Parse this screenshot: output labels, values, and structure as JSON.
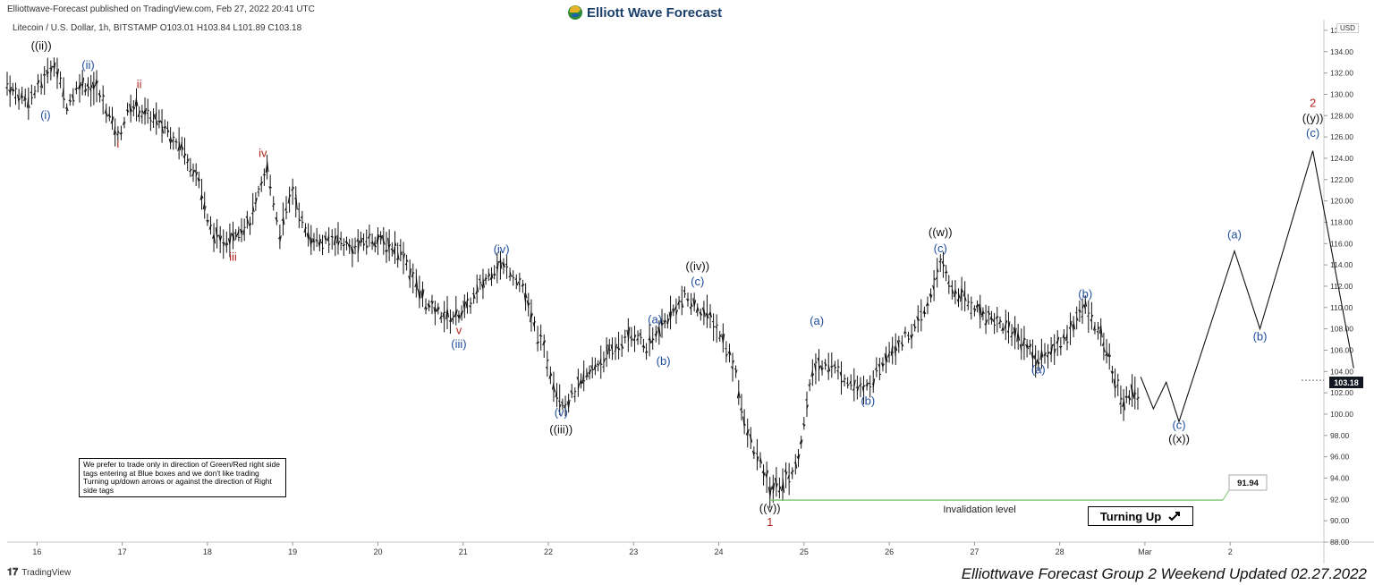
{
  "header": {
    "published": "Elliottwave-Forecast published on TradingView.com, Feb 27, 2022 20:41 UTC",
    "symbol_line": "Litecoin / U.S. Dollar, 1h, BITSTAMP  O103.01  H103.84  L101.89  C103.18",
    "brand": "Elliott Wave Forecast"
  },
  "footer": {
    "left": "TradingView",
    "right": "Elliottwave Forecast Group 2 Weekend Updated 02.27.2022"
  },
  "note": "We prefer to trade only in direction of Green/Red right side tags entering at Blue boxes and we don't like trading Turning up/down arrows or against the direction of Right side tags",
  "turning_up": "Turning Up",
  "turning_up_icon": "arrow-up-right-icon",
  "invalidation_label": "Invalidation level",
  "invalidation_value": "91.94",
  "current_price": "103.18",
  "currency": "USD",
  "colors": {
    "blue": "#1f4e9c",
    "red": "#b3261e",
    "black": "#111111",
    "green": "#7cc36b"
  },
  "chart_data": {
    "type": "line",
    "title": "Litecoin / U.S. Dollar, 1h, BITSTAMP",
    "x_ticks": [
      {
        "label": "16",
        "day": 16
      },
      {
        "label": "17",
        "day": 17
      },
      {
        "label": "18",
        "day": 18
      },
      {
        "label": "19",
        "day": 19
      },
      {
        "label": "20",
        "day": 20
      },
      {
        "label": "21",
        "day": 21
      },
      {
        "label": "22",
        "day": 22
      },
      {
        "label": "23",
        "day": 23
      },
      {
        "label": "24",
        "day": 24
      },
      {
        "label": "25",
        "day": 25
      },
      {
        "label": "26",
        "day": 26
      },
      {
        "label": "27",
        "day": 27
      },
      {
        "label": "28",
        "day": 28
      },
      {
        "label": "Mar",
        "day": 29
      },
      {
        "label": "2",
        "day": 30
      }
    ],
    "y_ticks": [
      88,
      90,
      92,
      94,
      96,
      98,
      100,
      102,
      104,
      106,
      108,
      110,
      112,
      114,
      116,
      118,
      120,
      122,
      124,
      126,
      128,
      130,
      132,
      134,
      136
    ],
    "ylim": [
      88,
      137
    ],
    "xlim": [
      15.65,
      31.1
    ],
    "price_path": [
      [
        15.65,
        131
      ],
      [
        15.75,
        130
      ],
      [
        15.9,
        129.5
      ],
      [
        16.05,
        131
      ],
      [
        16.2,
        133
      ],
      [
        16.35,
        129
      ],
      [
        16.5,
        131
      ],
      [
        16.7,
        130.5
      ],
      [
        16.85,
        128
      ],
      [
        16.95,
        126
      ],
      [
        17.1,
        129
      ],
      [
        17.3,
        128
      ],
      [
        17.5,
        127
      ],
      [
        17.7,
        125
      ],
      [
        17.9,
        122
      ],
      [
        18.0,
        118
      ],
      [
        18.15,
        116
      ],
      [
        18.3,
        117
      ],
      [
        18.5,
        118
      ],
      [
        18.7,
        123
      ],
      [
        18.85,
        117
      ],
      [
        19.0,
        121
      ],
      [
        19.15,
        117
      ],
      [
        19.35,
        116
      ],
      [
        19.5,
        116.5
      ],
      [
        19.7,
        115.5
      ],
      [
        19.9,
        116.5
      ],
      [
        20.1,
        116
      ],
      [
        20.3,
        115
      ],
      [
        20.45,
        112
      ],
      [
        20.6,
        110
      ],
      [
        20.85,
        109
      ],
      [
        21.05,
        110
      ],
      [
        21.2,
        112
      ],
      [
        21.4,
        114
      ],
      [
        21.55,
        113.5
      ],
      [
        21.7,
        112
      ],
      [
        21.8,
        109
      ],
      [
        21.95,
        106
      ],
      [
        22.1,
        102
      ],
      [
        22.2,
        101
      ],
      [
        22.35,
        102.5
      ],
      [
        22.55,
        104.5
      ],
      [
        22.75,
        106
      ],
      [
        22.9,
        107
      ],
      [
        23.05,
        107.5
      ],
      [
        23.15,
        106
      ],
      [
        23.3,
        108
      ],
      [
        23.5,
        110
      ],
      [
        23.6,
        111
      ],
      [
        23.75,
        110
      ],
      [
        23.9,
        109
      ],
      [
        24.05,
        107
      ],
      [
        24.2,
        104
      ],
      [
        24.3,
        99
      ],
      [
        24.45,
        96
      ],
      [
        24.6,
        93
      ],
      [
        24.75,
        93.5
      ],
      [
        24.9,
        95
      ],
      [
        25.0,
        99
      ],
      [
        25.1,
        104
      ],
      [
        25.25,
        105
      ],
      [
        25.4,
        104
      ],
      [
        25.55,
        103
      ],
      [
        25.7,
        102
      ],
      [
        25.85,
        104
      ],
      [
        26.0,
        106
      ],
      [
        26.15,
        107
      ],
      [
        26.3,
        108
      ],
      [
        26.45,
        110
      ],
      [
        26.6,
        114.5
      ],
      [
        26.7,
        112
      ],
      [
        26.85,
        111
      ],
      [
        27.0,
        110
      ],
      [
        27.2,
        109
      ],
      [
        27.4,
        108
      ],
      [
        27.55,
        107
      ],
      [
        27.75,
        105
      ],
      [
        27.9,
        106
      ],
      [
        28.05,
        107
      ],
      [
        28.2,
        109
      ],
      [
        28.3,
        110
      ],
      [
        28.45,
        108
      ],
      [
        28.55,
        106
      ],
      [
        28.65,
        103
      ],
      [
        28.75,
        101
      ],
      [
        28.85,
        102.5
      ],
      [
        28.95,
        100.5
      ]
    ],
    "projection": [
      [
        28.95,
        103.5
      ],
      [
        29.1,
        100.5
      ],
      [
        29.25,
        103
      ],
      [
        29.4,
        99.3
      ],
      [
        30.05,
        115.3
      ],
      [
        30.35,
        108
      ],
      [
        30.97,
        124.7
      ],
      [
        31.45,
        104.3
      ]
    ],
    "invalidation": {
      "from": 24.6,
      "to": 31.2,
      "value": 91.94
    },
    "labels": [
      {
        "text": "((ii))",
        "x": 16.05,
        "y": 134.2,
        "color": "black"
      },
      {
        "text": "(ii)",
        "x": 16.6,
        "y": 132.4,
        "color": "blue"
      },
      {
        "text": "(i)",
        "x": 16.1,
        "y": 127.7,
        "color": "blue"
      },
      {
        "text": "ii",
        "x": 17.2,
        "y": 130.6,
        "color": "red"
      },
      {
        "text": "i",
        "x": 16.95,
        "y": 125.0,
        "color": "red"
      },
      {
        "text": "iv",
        "x": 18.65,
        "y": 124.1,
        "color": "red"
      },
      {
        "text": "iii",
        "x": 18.3,
        "y": 114.4,
        "color": "red"
      },
      {
        "text": "(iv)",
        "x": 21.45,
        "y": 115.1,
        "color": "blue"
      },
      {
        "text": "v",
        "x": 20.95,
        "y": 107.5,
        "color": "red"
      },
      {
        "text": "(iii)",
        "x": 20.95,
        "y": 106.2,
        "color": "blue"
      },
      {
        "text": "((iv))",
        "x": 23.75,
        "y": 113.5,
        "color": "black"
      },
      {
        "text": "(c)",
        "x": 23.75,
        "y": 112.1,
        "color": "blue"
      },
      {
        "text": "(a)",
        "x": 23.25,
        "y": 108.5,
        "color": "blue"
      },
      {
        "text": "(b)",
        "x": 23.35,
        "y": 104.6,
        "color": "blue"
      },
      {
        "text": "(v)",
        "x": 22.15,
        "y": 99.8,
        "color": "blue"
      },
      {
        "text": "((iii))",
        "x": 22.15,
        "y": 98.2,
        "color": "black"
      },
      {
        "text": "(a)",
        "x": 25.15,
        "y": 108.4,
        "color": "blue"
      },
      {
        "text": "(b)",
        "x": 25.75,
        "y": 100.9,
        "color": "blue"
      },
      {
        "text": "((w))",
        "x": 26.6,
        "y": 116.7,
        "color": "black"
      },
      {
        "text": "(c)",
        "x": 26.6,
        "y": 115.2,
        "color": "blue"
      },
      {
        "text": "((v))",
        "x": 24.6,
        "y": 90.8,
        "color": "black"
      },
      {
        "text": "1",
        "x": 24.6,
        "y": 89.5,
        "color": "red"
      },
      {
        "text": "(b)",
        "x": 28.3,
        "y": 110.9,
        "color": "blue"
      },
      {
        "text": "(a)",
        "x": 27.75,
        "y": 103.8,
        "color": "blue"
      },
      {
        "text": "(c)",
        "x": 29.4,
        "y": 98.6,
        "color": "blue"
      },
      {
        "text": "((x))",
        "x": 29.4,
        "y": 97.3,
        "color": "black"
      },
      {
        "text": "(a)",
        "x": 30.05,
        "y": 116.5,
        "color": "blue"
      },
      {
        "text": "(b)",
        "x": 30.35,
        "y": 106.9,
        "color": "blue"
      },
      {
        "text": "2",
        "x": 30.97,
        "y": 128.8,
        "color": "red"
      },
      {
        "text": "((y))",
        "x": 30.97,
        "y": 127.4,
        "color": "black"
      },
      {
        "text": "(c)",
        "x": 30.97,
        "y": 126.0,
        "color": "blue"
      }
    ]
  }
}
